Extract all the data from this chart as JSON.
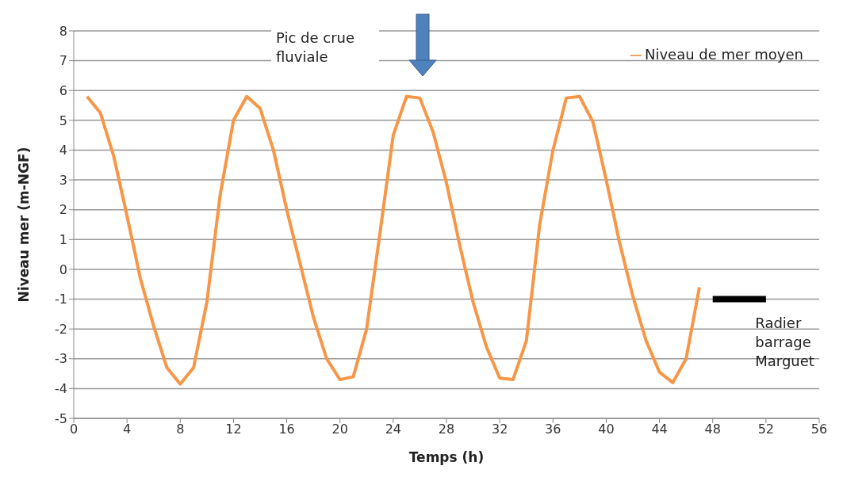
{
  "chart_data": {
    "type": "line",
    "xlabel": "Temps (h)",
    "ylabel": "Niveau mer (m-NGF)",
    "x": [
      1,
      2,
      3,
      4,
      5,
      6,
      7,
      8,
      9,
      10,
      11,
      12,
      13,
      14,
      15,
      16,
      17,
      18,
      19,
      20,
      21,
      22,
      23,
      24,
      25,
      26,
      27,
      28,
      29,
      30,
      31,
      32,
      33,
      34,
      35,
      36,
      37,
      38,
      39,
      40,
      41,
      42,
      43,
      44,
      45,
      46,
      47
    ],
    "series": [
      {
        "name": "Niveau de mer moyen",
        "color": "#f79646",
        "values": [
          5.8,
          5.25,
          3.8,
          1.8,
          -0.3,
          -1.9,
          -3.3,
          -3.85,
          -3.3,
          -1.1,
          2.5,
          5.0,
          5.8,
          5.4,
          4.0,
          2.0,
          0.2,
          -1.6,
          -3.0,
          -3.7,
          -3.6,
          -2.0,
          1.2,
          4.5,
          5.8,
          5.75,
          4.6,
          2.9,
          0.8,
          -1.1,
          -2.6,
          -3.65,
          -3.7,
          -2.4,
          1.5,
          4.0,
          5.75,
          5.8,
          4.95,
          3.0,
          0.9,
          -0.9,
          -2.4,
          -3.45,
          -3.8,
          -3.0,
          -0.6
        ]
      },
      {
        "color": "#000000",
        "x": [
          48,
          52
        ],
        "values": [
          -1,
          -1
        ]
      }
    ],
    "annotations": [
      "Pic de crue fluviale",
      {
        "text": "Radier barrage Marguet",
        "x": 50,
        "y": -1
      }
    ],
    "xlim": [
      0,
      56
    ],
    "xticks": [
      0,
      4,
      8,
      12,
      16,
      20,
      24,
      28,
      32,
      36,
      40,
      44,
      48,
      52,
      56
    ],
    "ylim": [
      -5,
      8
    ],
    "yticks": [
      -5,
      -4,
      -3,
      -2,
      -1,
      0,
      1,
      2,
      3,
      4,
      5,
      6,
      7,
      8
    ],
    "grid": "y",
    "legend": "top right",
    "marker": "none",
    "line_style": "solid"
  }
}
